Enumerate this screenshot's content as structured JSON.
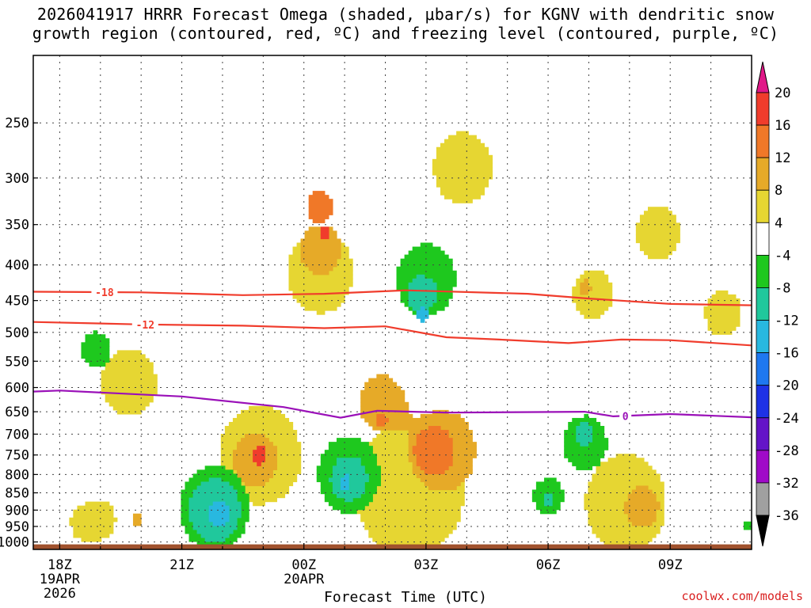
{
  "title": {
    "line1": "2026041917 HRRR Forecast Omega (shaded, μbar/s) for KGNV with dendritic snow",
    "line2": "growth region (contoured, red, ºC) and freezing level (contoured, purple, ºC)"
  },
  "watermark": "coolwx.com/models",
  "chart_data": {
    "type": "heatmap",
    "xlabel": "Forecast Time (UTC)",
    "ylabel": "",
    "x_ticks": [
      {
        "hour": 0,
        "lines": [
          "18Z",
          "19APR",
          "2026"
        ]
      },
      {
        "hour": 3,
        "lines": [
          "21Z"
        ]
      },
      {
        "hour": 6,
        "lines": [
          "00Z",
          "20APR"
        ]
      },
      {
        "hour": 9,
        "lines": [
          "03Z"
        ]
      },
      {
        "hour": 12,
        "lines": [
          "06Z"
        ]
      },
      {
        "hour": 15,
        "lines": [
          "09Z"
        ]
      }
    ],
    "xlim": [
      -0.65,
      17.0
    ],
    "y_ticks": [
      250,
      300,
      350,
      400,
      450,
      500,
      550,
      600,
      650,
      700,
      750,
      800,
      850,
      900,
      950,
      1000
    ],
    "ylim_hpa": [
      1025,
      200
    ],
    "colorbar": {
      "labels": [
        "20",
        "16",
        "12",
        "8",
        "4",
        "-4",
        "-8",
        "-12",
        "-16",
        "-20",
        "-24",
        "-28",
        "-32",
        "-36"
      ],
      "colors": [
        "#e01888",
        "#f03c2c",
        "#f07828",
        "#e6aa28",
        "#e6d632",
        "#ffffff",
        "#1ec81e",
        "#20c89c",
        "#28b8e0",
        "#1e78f0",
        "#1e32e6",
        "#6414c8",
        "#a00ac8",
        "#a0a0a0",
        "#000000"
      ]
    },
    "omega_fields": [
      {
        "level": 4,
        "color": "#e6d632",
        "blobs": [
          [
            1.7,
            590,
            0.75
          ],
          [
            6.4,
            410,
            0.9
          ],
          [
            8.6,
            840,
            1.5
          ],
          [
            9.9,
            290,
            0.8
          ],
          [
            14.7,
            360,
            0.6
          ],
          [
            13.1,
            440,
            0.55
          ],
          [
            16.3,
            470,
            0.5
          ],
          [
            4.9,
            750,
            1.1
          ],
          [
            13.9,
            880,
            1.1
          ],
          [
            1.0,
            930,
            0.4
          ],
          [
            0.6,
            940,
            0.35
          ]
        ]
      },
      {
        "level": 8,
        "color": "#e6aa28",
        "blobs": [
          [
            6.4,
            380,
            0.55
          ],
          [
            7.9,
            630,
            0.6
          ],
          [
            9.4,
            740,
            0.9
          ],
          [
            4.8,
            760,
            0.6
          ],
          [
            14.3,
            890,
            0.45
          ],
          [
            1.9,
            925,
            0.15
          ],
          [
            12.9,
            430,
            0.15
          ]
        ]
      },
      {
        "level": 12,
        "color": "#f07828",
        "blobs": [
          [
            6.4,
            330,
            0.35
          ],
          [
            9.2,
            740,
            0.55
          ],
          [
            7.9,
            670,
            0.15
          ]
        ]
      },
      {
        "level": 16,
        "color": "#f03c2c",
        "blobs": [
          [
            6.5,
            360,
            0.12
          ],
          [
            4.9,
            750,
            0.2
          ]
        ]
      },
      {
        "level": -4,
        "color": "#1ec81e",
        "blobs": [
          [
            9.0,
            420,
            0.8
          ],
          [
            7.1,
            800,
            0.85
          ],
          [
            3.8,
            895,
            0.95
          ],
          [
            12.9,
            720,
            0.6
          ],
          [
            12.0,
            860,
            0.4
          ],
          [
            0.9,
            530,
            0.4
          ],
          [
            16.9,
            950,
            0.1
          ]
        ]
      },
      {
        "level": -8,
        "color": "#20c89c",
        "blobs": [
          [
            8.9,
            440,
            0.4
          ],
          [
            7.1,
            810,
            0.5
          ],
          [
            3.8,
            900,
            0.7
          ],
          [
            12.9,
            700,
            0.25
          ],
          [
            12.0,
            870,
            0.15
          ]
        ]
      },
      {
        "level": -12,
        "color": "#28b8e0",
        "blobs": [
          [
            8.9,
            470,
            0.15
          ],
          [
            7.0,
            820,
            0.15
          ],
          [
            3.9,
            910,
            0.3
          ]
        ]
      }
    ],
    "contours": [
      {
        "name": "dgz-minus-18",
        "label": "-18",
        "label_hour": 1.1,
        "color": "#f03c2c",
        "points": [
          [
            -0.65,
            437
          ],
          [
            2.0,
            438
          ],
          [
            4.5,
            442
          ],
          [
            6.5,
            440
          ],
          [
            8.5,
            435
          ],
          [
            11.5,
            440
          ],
          [
            13.0,
            447
          ],
          [
            15.0,
            455
          ],
          [
            17.0,
            457
          ]
        ]
      },
      {
        "name": "dgz-minus-12",
        "label": "-12",
        "label_hour": 2.1,
        "color": "#f03c2c",
        "points": [
          [
            -0.65,
            483
          ],
          [
            2.0,
            487
          ],
          [
            4.5,
            489
          ],
          [
            6.5,
            493
          ],
          [
            8.0,
            490
          ],
          [
            9.5,
            508
          ],
          [
            10.8,
            512
          ],
          [
            12.5,
            518
          ],
          [
            13.8,
            512
          ],
          [
            15.0,
            513
          ],
          [
            17.0,
            522
          ]
        ]
      },
      {
        "name": "freezing-level-0",
        "label": "0",
        "label_hour": 13.9,
        "color": "#9a10b8",
        "points": [
          [
            -0.65,
            608
          ],
          [
            0.0,
            606
          ],
          [
            3.0,
            618
          ],
          [
            5.5,
            640
          ],
          [
            6.9,
            663
          ],
          [
            7.8,
            648
          ],
          [
            9.5,
            652
          ],
          [
            12.9,
            650
          ],
          [
            13.6,
            660
          ],
          [
            15.0,
            655
          ],
          [
            17.0,
            662
          ]
        ]
      }
    ],
    "terrain": {
      "label": "ground",
      "color": "#a0522d",
      "pressure_hpa": 1008
    }
  }
}
